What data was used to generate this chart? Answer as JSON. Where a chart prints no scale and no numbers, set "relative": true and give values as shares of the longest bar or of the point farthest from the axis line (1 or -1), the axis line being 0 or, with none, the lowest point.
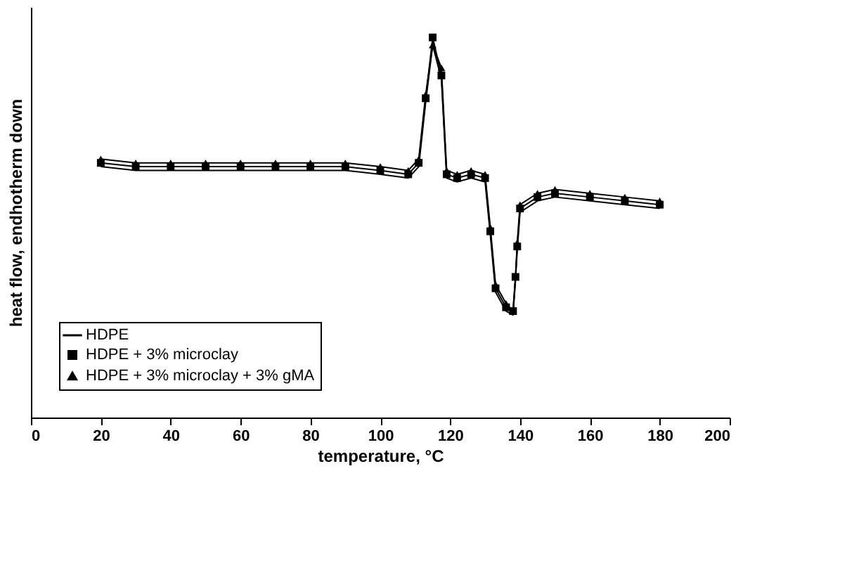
{
  "chart_data": {
    "type": "line",
    "relative": true,
    "xlabel": "temperature, °C",
    "ylabel": "heat flow, endhotherm down",
    "x": [
      20,
      30,
      40,
      50,
      60,
      70,
      80,
      90,
      100,
      108,
      111,
      113,
      115,
      117.5,
      119,
      122,
      126,
      130,
      131.5,
      133,
      136,
      138,
      138.7,
      139.2,
      140,
      145,
      150,
      160,
      170,
      180
    ],
    "xlim": [
      0,
      200
    ],
    "xticks": [
      0,
      20,
      40,
      60,
      80,
      100,
      120,
      140,
      160,
      180,
      200
    ],
    "grid": false,
    "legend": "bottom left",
    "line_style": "solid",
    "series": [
      {
        "name": "HDPE",
        "color": "#000000",
        "marker": "none",
        "values": [
          0.66,
          0.65,
          0.65,
          0.65,
          0.65,
          0.65,
          0.65,
          0.65,
          0.64,
          0.63,
          0.66,
          0.83,
          0.98,
          0.89,
          0.63,
          0.62,
          0.63,
          0.62,
          0.48,
          0.33,
          0.28,
          0.27,
          0.36,
          0.44,
          0.54,
          0.57,
          0.58,
          0.57,
          0.56,
          0.55
        ]
      },
      {
        "name": "HDPE + 3% microclay",
        "color": "#000000",
        "marker": "square",
        "values": [
          0.67,
          0.66,
          0.66,
          0.66,
          0.66,
          0.66,
          0.66,
          0.66,
          0.65,
          0.64,
          0.67,
          0.84,
          1.0,
          0.9,
          0.64,
          0.63,
          0.64,
          0.63,
          0.49,
          0.34,
          0.29,
          0.28,
          0.37,
          0.45,
          0.55,
          0.58,
          0.59,
          0.58,
          0.57,
          0.56
        ]
      },
      {
        "name": "HDPE + 3% microclay + 3% gMA",
        "color": "#000000",
        "marker": "triangle",
        "values": [
          0.68,
          0.67,
          0.67,
          0.67,
          0.67,
          0.67,
          0.67,
          0.67,
          0.66,
          0.65,
          0.68,
          0.85,
          0.98,
          0.92,
          0.65,
          0.64,
          0.65,
          0.64,
          0.5,
          0.35,
          0.3,
          0.28,
          0.37,
          0.46,
          0.56,
          0.59,
          0.6,
          0.59,
          0.58,
          0.57
        ]
      }
    ]
  }
}
